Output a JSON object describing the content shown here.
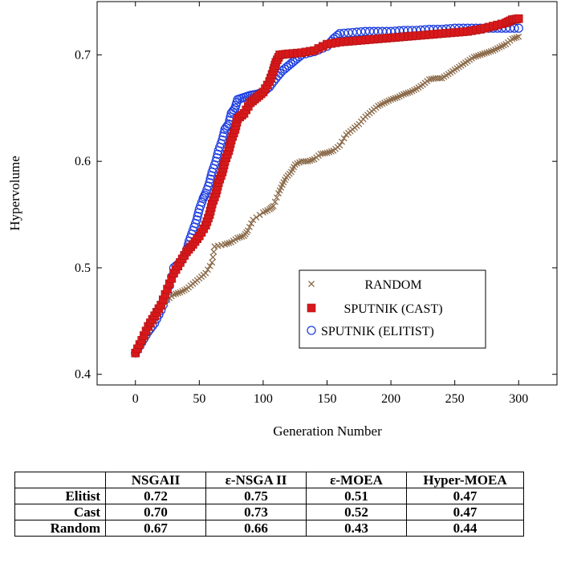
{
  "chart_data": {
    "type": "scatter",
    "xlabel": "Generation Number",
    "ylabel": "Hypervolume",
    "xlim": [
      -30,
      330
    ],
    "ylim": [
      0.39,
      0.75
    ],
    "x_ticks": [
      "0",
      "50",
      "100",
      "150",
      "200",
      "250",
      "300"
    ],
    "y_ticks": [
      "0.4",
      "0.5",
      "0.6",
      "0.7"
    ],
    "legend_position": "lower-right",
    "grid": false,
    "series": [
      {
        "name": "RANDOM",
        "marker": "x",
        "color": "#8b6b4a",
        "points": [
          [
            0,
            0.42
          ],
          [
            5,
            0.43
          ],
          [
            10,
            0.44
          ],
          [
            15,
            0.45
          ],
          [
            20,
            0.46
          ],
          [
            25,
            0.47
          ],
          [
            30,
            0.475
          ],
          [
            35,
            0.477
          ],
          [
            40,
            0.48
          ],
          [
            45,
            0.485
          ],
          [
            50,
            0.49
          ],
          [
            55,
            0.495
          ],
          [
            60,
            0.505
          ],
          [
            62,
            0.52
          ],
          [
            70,
            0.522
          ],
          [
            75,
            0.524
          ],
          [
            80,
            0.528
          ],
          [
            85,
            0.53
          ],
          [
            88,
            0.535
          ],
          [
            92,
            0.545
          ],
          [
            100,
            0.552
          ],
          [
            105,
            0.555
          ],
          [
            108,
            0.558
          ],
          [
            112,
            0.57
          ],
          [
            115,
            0.578
          ],
          [
            118,
            0.585
          ],
          [
            122,
            0.59
          ],
          [
            125,
            0.597
          ],
          [
            130,
            0.6
          ],
          [
            135,
            0.6
          ],
          [
            140,
            0.602
          ],
          [
            145,
            0.607
          ],
          [
            150,
            0.608
          ],
          [
            155,
            0.61
          ],
          [
            160,
            0.615
          ],
          [
            165,
            0.625
          ],
          [
            170,
            0.63
          ],
          [
            175,
            0.635
          ],
          [
            180,
            0.642
          ],
          [
            185,
            0.647
          ],
          [
            190,
            0.652
          ],
          [
            195,
            0.655
          ],
          [
            200,
            0.658
          ],
          [
            205,
            0.66
          ],
          [
            210,
            0.663
          ],
          [
            215,
            0.665
          ],
          [
            220,
            0.668
          ],
          [
            225,
            0.672
          ],
          [
            230,
            0.677
          ],
          [
            235,
            0.678
          ],
          [
            240,
            0.678
          ],
          [
            245,
            0.682
          ],
          [
            250,
            0.686
          ],
          [
            255,
            0.69
          ],
          [
            260,
            0.694
          ],
          [
            265,
            0.698
          ],
          [
            270,
            0.7
          ],
          [
            275,
            0.702
          ],
          [
            280,
            0.704
          ],
          [
            285,
            0.707
          ],
          [
            290,
            0.71
          ],
          [
            295,
            0.715
          ],
          [
            300,
            0.717
          ]
        ]
      },
      {
        "name": "SPUTNIK (CAST)",
        "marker": "square",
        "color": "#d7191c",
        "points": [
          [
            0,
            0.42
          ],
          [
            5,
            0.432
          ],
          [
            10,
            0.445
          ],
          [
            15,
            0.455
          ],
          [
            20,
            0.465
          ],
          [
            25,
            0.48
          ],
          [
            30,
            0.495
          ],
          [
            35,
            0.505
          ],
          [
            40,
            0.515
          ],
          [
            45,
            0.522
          ],
          [
            50,
            0.53
          ],
          [
            55,
            0.54
          ],
          [
            58,
            0.55
          ],
          [
            60,
            0.56
          ],
          [
            63,
            0.57
          ],
          [
            65,
            0.58
          ],
          [
            68,
            0.59
          ],
          [
            70,
            0.6
          ],
          [
            73,
            0.61
          ],
          [
            75,
            0.62
          ],
          [
            78,
            0.63
          ],
          [
            80,
            0.64
          ],
          [
            85,
            0.645
          ],
          [
            90,
            0.655
          ],
          [
            95,
            0.66
          ],
          [
            100,
            0.665
          ],
          [
            105,
            0.675
          ],
          [
            108,
            0.685
          ],
          [
            110,
            0.693
          ],
          [
            113,
            0.7
          ],
          [
            120,
            0.701
          ],
          [
            130,
            0.702
          ],
          [
            140,
            0.704
          ],
          [
            150,
            0.71
          ],
          [
            160,
            0.712
          ],
          [
            170,
            0.713
          ],
          [
            180,
            0.714
          ],
          [
            190,
            0.715
          ],
          [
            200,
            0.716
          ],
          [
            210,
            0.717
          ],
          [
            220,
            0.718
          ],
          [
            230,
            0.719
          ],
          [
            240,
            0.72
          ],
          [
            250,
            0.721
          ],
          [
            260,
            0.722
          ],
          [
            270,
            0.724
          ],
          [
            280,
            0.727
          ],
          [
            290,
            0.73
          ],
          [
            295,
            0.733
          ],
          [
            300,
            0.734
          ]
        ]
      },
      {
        "name": "SPUTNIK (ELITIST)",
        "marker": "circle",
        "color": "#1f3fe0",
        "points": [
          [
            0,
            0.42
          ],
          [
            5,
            0.43
          ],
          [
            10,
            0.44
          ],
          [
            15,
            0.448
          ],
          [
            20,
            0.46
          ],
          [
            25,
            0.475
          ],
          [
            30,
            0.5
          ],
          [
            35,
            0.505
          ],
          [
            40,
            0.515
          ],
          [
            42,
            0.525
          ],
          [
            45,
            0.535
          ],
          [
            48,
            0.545
          ],
          [
            50,
            0.555
          ],
          [
            53,
            0.565
          ],
          [
            55,
            0.57
          ],
          [
            58,
            0.58
          ],
          [
            60,
            0.59
          ],
          [
            63,
            0.6
          ],
          [
            65,
            0.61
          ],
          [
            68,
            0.62
          ],
          [
            70,
            0.63
          ],
          [
            73,
            0.635
          ],
          [
            75,
            0.645
          ],
          [
            78,
            0.65
          ],
          [
            80,
            0.658
          ],
          [
            85,
            0.66
          ],
          [
            90,
            0.662
          ],
          [
            95,
            0.663
          ],
          [
            100,
            0.665
          ],
          [
            105,
            0.67
          ],
          [
            110,
            0.678
          ],
          [
            115,
            0.685
          ],
          [
            120,
            0.69
          ],
          [
            125,
            0.695
          ],
          [
            130,
            0.7
          ],
          [
            140,
            0.703
          ],
          [
            150,
            0.708
          ],
          [
            155,
            0.715
          ],
          [
            160,
            0.72
          ],
          [
            170,
            0.721
          ],
          [
            180,
            0.722
          ],
          [
            190,
            0.722
          ],
          [
            200,
            0.722
          ],
          [
            210,
            0.723
          ],
          [
            220,
            0.723
          ],
          [
            230,
            0.724
          ],
          [
            240,
            0.724
          ],
          [
            250,
            0.725
          ],
          [
            260,
            0.725
          ],
          [
            270,
            0.725
          ],
          [
            280,
            0.725
          ],
          [
            290,
            0.725
          ],
          [
            300,
            0.725
          ]
        ]
      }
    ]
  },
  "table": {
    "headers": [
      "",
      "NSGAII",
      "ε-NSGA II",
      "ε-MOEA",
      "Hyper-MOEA"
    ],
    "rows": [
      {
        "label": "Elitist",
        "values": [
          "0.72",
          "0.75",
          "0.51",
          "0.47"
        ]
      },
      {
        "label": "Cast",
        "values": [
          "0.70",
          "0.73",
          "0.52",
          "0.47"
        ]
      },
      {
        "label": "Random",
        "values": [
          "0.67",
          "0.66",
          "0.43",
          "0.44"
        ]
      }
    ]
  }
}
